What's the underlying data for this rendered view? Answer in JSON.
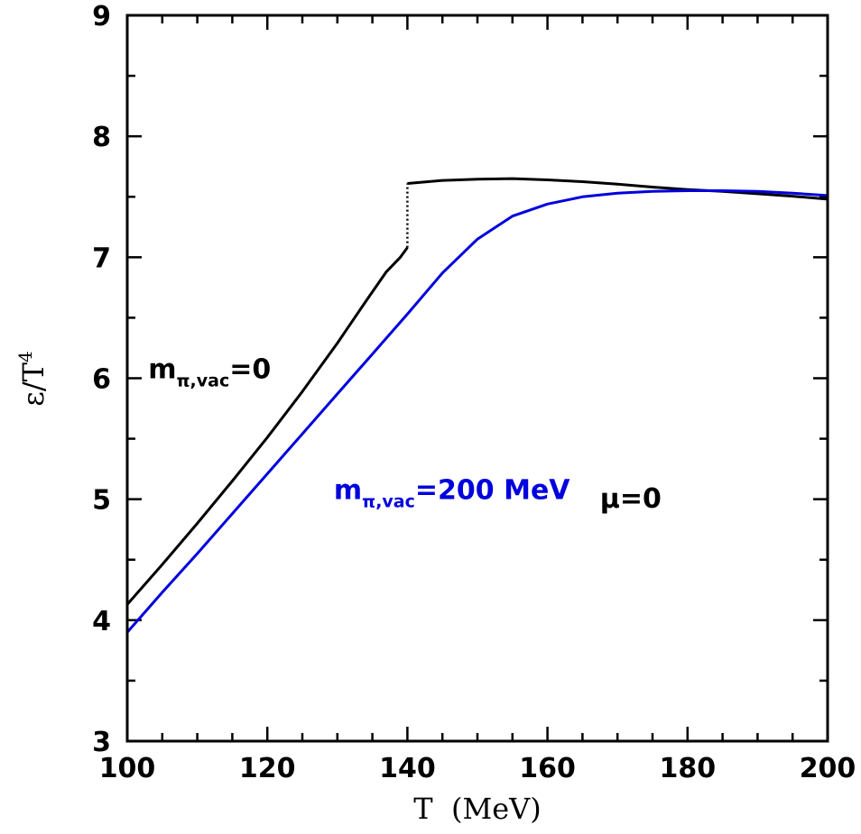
{
  "chart_data": {
    "type": "line",
    "xlabel": "T  (MeV)",
    "ylabel_main": "ε",
    "ylabel_T": "T",
    "ylabel_exp": "4",
    "xlim": [
      100,
      200
    ],
    "ylim": [
      3,
      9
    ],
    "x_ticks": [
      "100",
      "120",
      "140",
      "160",
      "180",
      "200"
    ],
    "y_ticks": [
      "3",
      "4",
      "5",
      "6",
      "7",
      "8",
      "9"
    ],
    "series": [
      {
        "name": "m_π,vac=0",
        "color": "#000000",
        "points": [
          [
            100,
            4.13
          ],
          [
            105,
            4.46
          ],
          [
            110,
            4.8
          ],
          [
            115,
            5.15
          ],
          [
            120,
            5.51
          ],
          [
            125,
            5.89
          ],
          [
            130,
            6.29
          ],
          [
            134,
            6.63
          ],
          [
            137,
            6.88
          ],
          [
            139,
            7.0
          ],
          [
            140,
            7.08
          ]
        ],
        "jump": [
          [
            140,
            7.08
          ],
          [
            140,
            7.61
          ]
        ],
        "points_high": [
          [
            140,
            7.61
          ],
          [
            145,
            7.635
          ],
          [
            150,
            7.645
          ],
          [
            155,
            7.65
          ],
          [
            160,
            7.64
          ],
          [
            165,
            7.625
          ],
          [
            170,
            7.605
          ],
          [
            175,
            7.58
          ],
          [
            180,
            7.56
          ],
          [
            185,
            7.545
          ],
          [
            190,
            7.525
          ],
          [
            195,
            7.505
          ],
          [
            200,
            7.48
          ]
        ]
      },
      {
        "name": "m_π,vac=200 MeV",
        "color": "#0000dd",
        "points": [
          [
            100,
            3.9
          ],
          [
            105,
            4.23
          ],
          [
            110,
            4.55
          ],
          [
            115,
            4.88
          ],
          [
            120,
            5.21
          ],
          [
            125,
            5.54
          ],
          [
            130,
            5.87
          ],
          [
            135,
            6.2
          ],
          [
            140,
            6.53
          ],
          [
            145,
            6.87
          ],
          [
            150,
            7.15
          ],
          [
            155,
            7.34
          ],
          [
            160,
            7.44
          ],
          [
            165,
            7.5
          ],
          [
            170,
            7.53
          ],
          [
            175,
            7.545
          ],
          [
            180,
            7.55
          ],
          [
            185,
            7.55
          ],
          [
            190,
            7.545
          ],
          [
            195,
            7.53
          ],
          [
            200,
            7.51
          ]
        ]
      }
    ],
    "annotations": [
      {
        "main": "m",
        "sub": "π,vac",
        "rest": "=0",
        "color": "#000000",
        "x": 103,
        "y": 6.0
      },
      {
        "main": "m",
        "sub": "π,vac",
        "rest": "=200 MeV",
        "color": "#0000dd",
        "x": 129.5,
        "y": 5.0
      },
      {
        "main": "μ",
        "sub": "",
        "rest": "=0",
        "color": "#000000",
        "x": 167.5,
        "y": 4.93
      }
    ]
  }
}
